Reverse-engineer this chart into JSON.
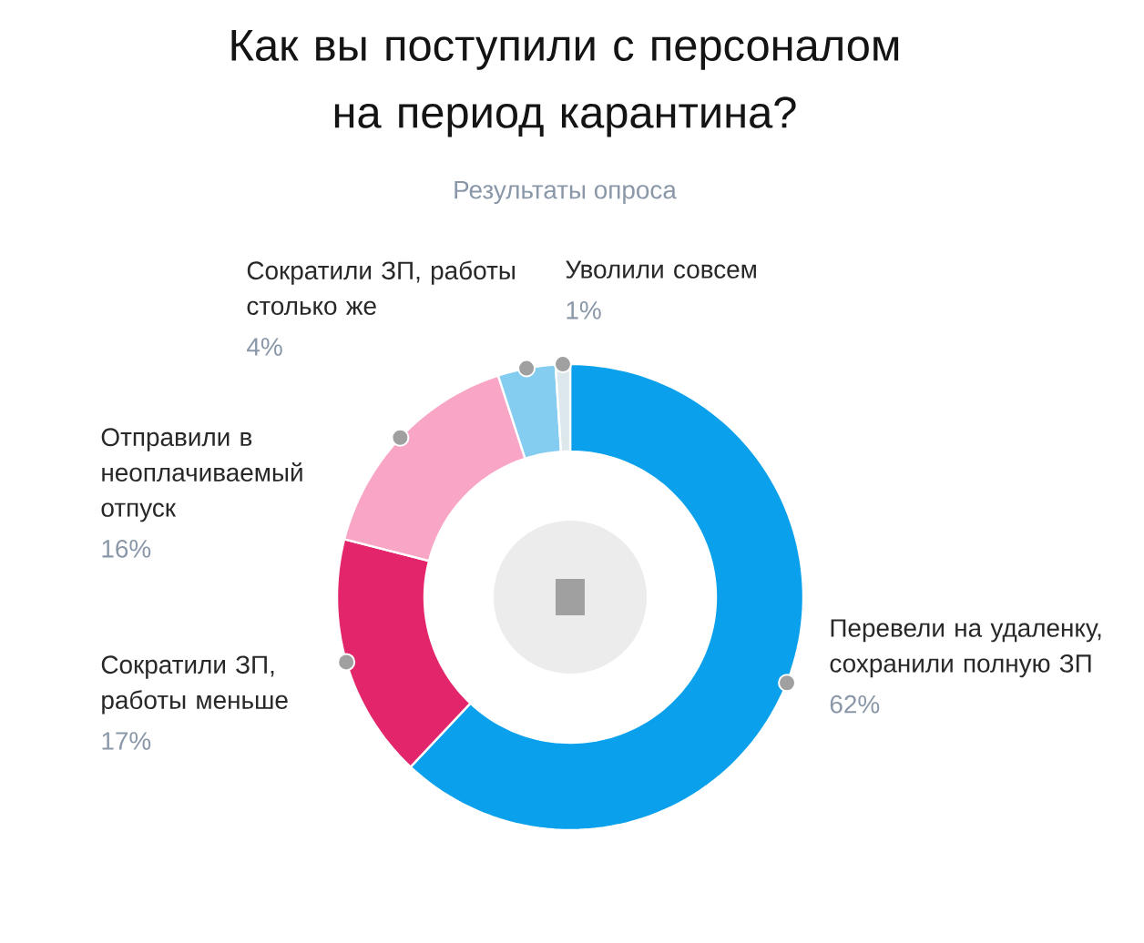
{
  "chart_data": {
    "type": "donut",
    "title": "Как вы поступили с персоналом на период карантина?",
    "subtitle": "Результаты опроса",
    "categories": [
      "Перевели на удаленку, сохранили полную ЗП",
      "Сократили ЗП, работы меньше",
      "Отправили в неоплачиваемый отпуск",
      "Сократили ЗП, работы столько же",
      "Уволили совсем"
    ],
    "values": [
      62,
      17,
      16,
      4,
      1
    ],
    "value_labels": [
      "62%",
      "17%",
      "16%",
      "4%",
      "1%"
    ],
    "colors": [
      "#0aa0ec",
      "#e3266b",
      "#f9a6c6",
      "#84cdf0",
      "#dce8ec"
    ]
  }
}
